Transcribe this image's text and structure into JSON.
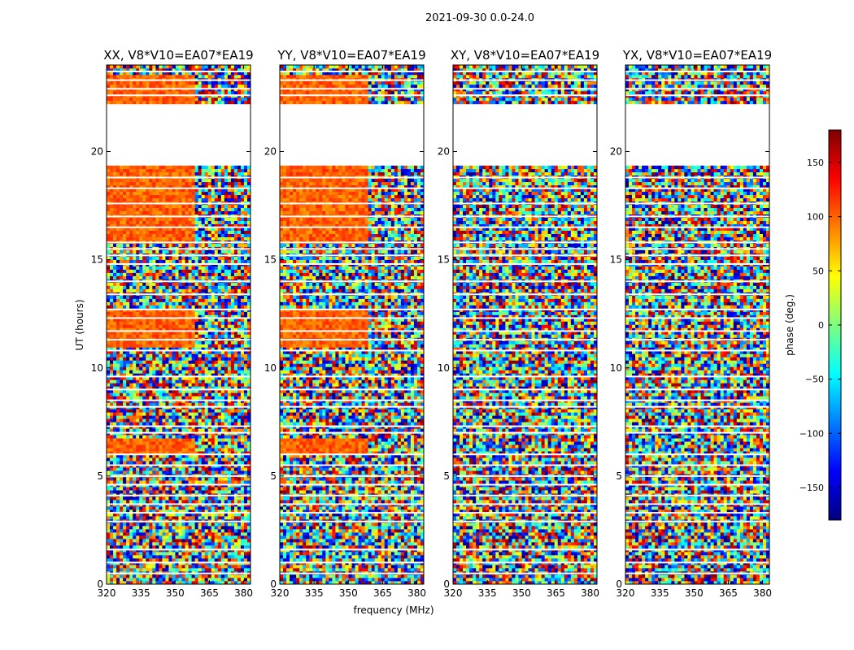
{
  "figure": {
    "suptitle": "2021-09-30 0.0-24.0",
    "xlabel": "frequency (MHz)",
    "ylabel": "UT (hours)"
  },
  "chart_data": {
    "type": "heatmap",
    "title": "2021-09-30 0.0-24.0",
    "xlabel": "frequency (MHz)",
    "ylabel": "UT (hours)",
    "xlim": [
      320,
      383
    ],
    "ylim": [
      0,
      24
    ],
    "x_ticks": [
      320,
      335,
      350,
      365,
      380
    ],
    "y_ticks": [
      0,
      5,
      10,
      15,
      20
    ],
    "panels": [
      {
        "name": "XX, V8*V10=EA07*EA19",
        "pol": "XX"
      },
      {
        "name": "YY, V8*V10=EA07*EA19",
        "pol": "YY"
      },
      {
        "name": "XY, V8*V10=EA07*EA19",
        "pol": "XY"
      },
      {
        "name": "YX, V8*V10=EA07*EA19",
        "pol": "YX"
      }
    ],
    "gap_intervals_hours": [
      [
        19.3,
        22.2
      ]
    ],
    "colorbar": {
      "label": "phase (deg.)",
      "range": [
        -180,
        180
      ],
      "ticks": [
        150,
        100,
        50,
        0,
        -50,
        -100,
        -150
      ],
      "tick_labels": [
        "150",
        "100",
        "50",
        "0",
        "−50",
        "−100",
        "−150"
      ],
      "colormap": "jet",
      "colors": [
        "#00007f",
        "#0000ff",
        "#007fff",
        "#00ffff",
        "#7fff7f",
        "#ffff00",
        "#ff7f00",
        "#ff0000",
        "#7f0000"
      ]
    }
  }
}
